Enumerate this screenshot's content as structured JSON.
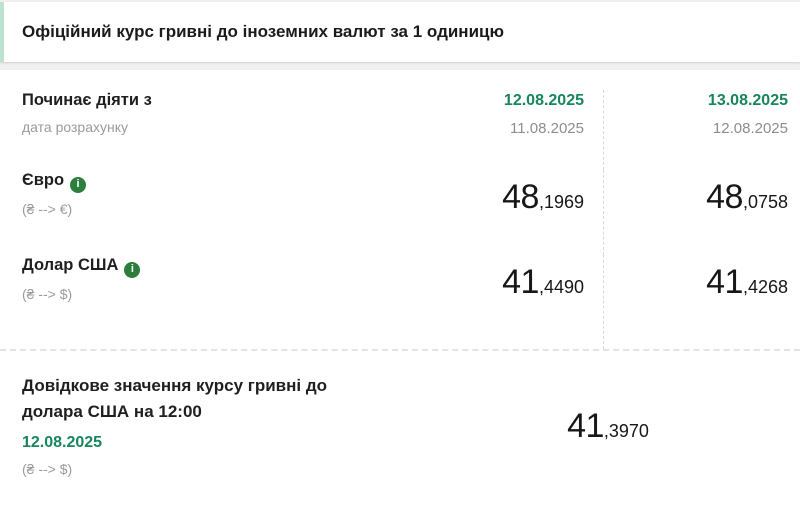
{
  "colors": {
    "accent_green": "#17865C",
    "info_icon_green": "#2B7E3B",
    "header_border_mint": "#BDE2CF",
    "page_background": "#F0F0F2"
  },
  "icons": {
    "info": "i"
  },
  "header": {
    "title": "Офіційний курс гривні до іноземних валют за 1 одиницю"
  },
  "table": {
    "first_row": {
      "label": "Починає діяти з",
      "sublabel": "дата розрахунку",
      "cols": [
        {
          "effective": "12.08.2025",
          "calc": "11.08.2025"
        },
        {
          "effective": "13.08.2025",
          "calc": "12.08.2025"
        }
      ]
    },
    "currency_rows": [
      {
        "name": "Євро",
        "pair": "(₴ --> €)",
        "values": [
          {
            "int": "48",
            "dec": ",1969"
          },
          {
            "int": "48",
            "dec": ",0758"
          }
        ]
      },
      {
        "name": "Долар США",
        "pair": "(₴ --> $)",
        "values": [
          {
            "int": "41",
            "dec": ",4490"
          },
          {
            "int": "41",
            "dec": ",4268"
          }
        ]
      }
    ]
  },
  "reference": {
    "title_line1": "Довідкове значення курсу гривні до",
    "title_line2": "долара США на 12:00",
    "date": "12.08.2025",
    "pair": "(₴ --> $)",
    "value": {
      "int": "41",
      "dec": ",3970"
    }
  }
}
